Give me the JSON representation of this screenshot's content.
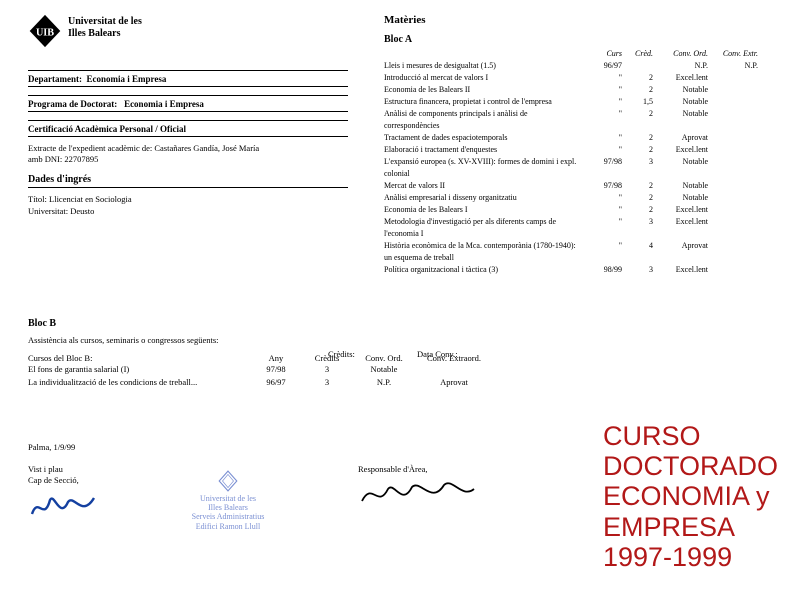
{
  "university": {
    "name_line1": "Universitat de les",
    "name_line2": "Illes Balears",
    "acronym": "UIB"
  },
  "left": {
    "dept_label": "Departament:",
    "dept_value": "Economia i Empresa",
    "prog_label": "Programa de Doctorat:",
    "prog_value": "Economia i Empresa",
    "cert_label": "Certificació Acadèmica Personal / Oficial",
    "extract_line1": "Extracte de l'expedient acadèmic de: Castañares Gandía, José María",
    "extract_line2": "amb DNI: 22707895",
    "ingress_title": "Dades d'ingrés",
    "ingress_line1": "Títol: Llicenciat en Sociologia",
    "ingress_line2": "Universitat: Deusto"
  },
  "materies": {
    "title": "Matèries",
    "blocA_title": "Bloc A",
    "columns": [
      "",
      "Curs",
      "Crèd.",
      "Conv. Ord.",
      "Conv. Extr."
    ],
    "rows": [
      {
        "name": "Lleis i mesures de desigualtat (1.5)",
        "curs": "96/97",
        "cred": "",
        "ord": "N.P.",
        "ext": "N.P."
      },
      {
        "name": "Introducció al mercat de valors I",
        "curs": "\"",
        "cred": "2",
        "ord": "Excel.lent",
        "ext": ""
      },
      {
        "name": "Economia de les Balears II",
        "curs": "\"",
        "cred": "2",
        "ord": "Notable",
        "ext": ""
      },
      {
        "name": "Estructura financera, propietat i control de l'empresa",
        "curs": "\"",
        "cred": "1,5",
        "ord": "Notable",
        "ext": ""
      },
      {
        "name": "Anàlisi de components principals i anàlisi de correspondències",
        "curs": "\"",
        "cred": "2",
        "ord": "Notable",
        "ext": ""
      },
      {
        "name": "Tractament de dades espaciotemporals",
        "curs": "\"",
        "cred": "2",
        "ord": "Aprovat",
        "ext": ""
      },
      {
        "name": "Elaboració i tractament d'enquestes",
        "curs": "\"",
        "cred": "2",
        "ord": "Excel.lent",
        "ext": ""
      },
      {
        "name": "L'expansió europea (s. XV-XVIII): formes de domini i expl. colonial",
        "curs": "97/98",
        "cred": "3",
        "ord": "Notable",
        "ext": ""
      },
      {
        "name": "Mercat de valors II",
        "curs": "97/98",
        "cred": "2",
        "ord": "Notable",
        "ext": ""
      },
      {
        "name": "Anàlisi empresarial i disseny organitzatiu",
        "curs": "\"",
        "cred": "2",
        "ord": "Notable",
        "ext": ""
      },
      {
        "name": "Economia de les Balears I",
        "curs": "\"",
        "cred": "2",
        "ord": "Excel.lent",
        "ext": ""
      },
      {
        "name": "Metodologia d'investigació per als diferents camps de l'economia I",
        "curs": "\"",
        "cred": "3",
        "ord": "Excel.lent",
        "ext": ""
      },
      {
        "name": "Història econòmica de la Mca. contemporània (1780-1940): un esquema de treball",
        "curs": "\"",
        "cred": "4",
        "ord": "Aprovat",
        "ext": ""
      },
      {
        "name": "Política organitzacional i tàctica (3)",
        "curs": "98/99",
        "cred": "3",
        "ord": "Excel.lent",
        "ext": ""
      }
    ]
  },
  "blocB": {
    "title": "Bloc B",
    "subtitle": "Assistència als cursos, seminaris o congressos següents:",
    "credits_label": "Crèdits:",
    "data_conv_label": "Data Conv.:",
    "columns": [
      "Cursos del Bloc B:",
      "Any",
      "Crèdits",
      "Conv. Ord.",
      "Conv. Extraord."
    ],
    "rows": [
      {
        "name": "El fons de garantia salarial (I)",
        "any": "97/98",
        "cred": "3",
        "ord": "Notable",
        "ext": ""
      },
      {
        "name": "La individualització de les condicions de treball...",
        "any": "96/97",
        "cred": "3",
        "ord": "N.P.",
        "ext": "Aprovat"
      }
    ]
  },
  "footer": {
    "place_date": "Palma, 1/9/99",
    "sig1_line1": "Vist i plau",
    "sig1_line2": "Cap de Secció,",
    "sig2_line1": "Responsable d'Àrea,",
    "stamp_line1": "Universitat de les",
    "stamp_line2": "Illes Balears",
    "stamp_line3": "Serveis Administratius",
    "stamp_line4": "Edifici Ramon Llull"
  },
  "red_label": {
    "l1": "CURSO",
    "l2": "DOCTORADO",
    "l3": "ECONOMIA y",
    "l4": "EMPRESA",
    "l5": "1997-1999"
  },
  "colors": {
    "text": "#000000",
    "red": "#b21818",
    "stamp": "#5a74c8",
    "bg": "#ffffff"
  }
}
